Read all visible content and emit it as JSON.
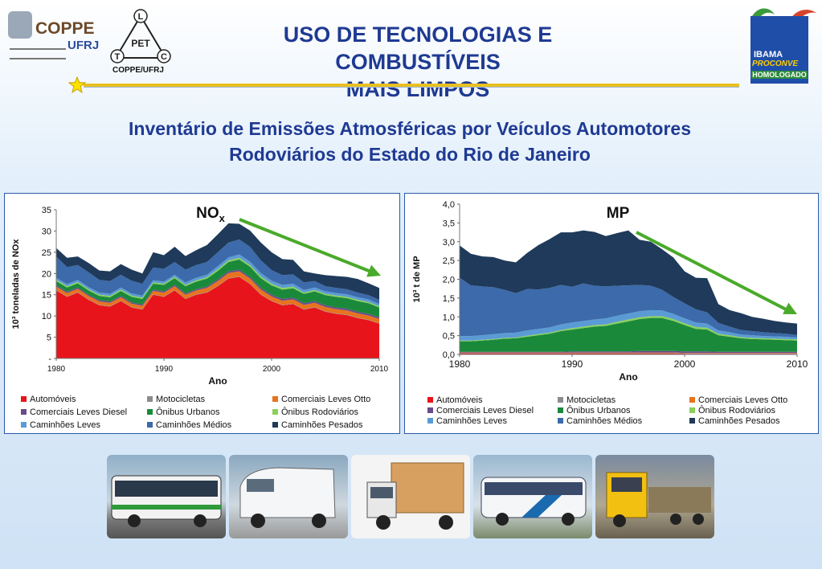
{
  "header": {
    "title_line1": "USO DE TECNOLOGIAS E COMBUSTÍVEIS",
    "title_line2": "MAIS LIMPOS",
    "coppe_name": "COPPE",
    "coppe_sub": "UFRJ",
    "pet_center": "PET",
    "pet_letters": [
      "L",
      "T",
      "C"
    ],
    "pet_caption": "COPPE/UFRJ",
    "ibama_line1": "IBAMA",
    "ibama_line2": "PROCONVE",
    "ibama_line3": "HOMOLOGADO"
  },
  "subtitle": {
    "line1": "Inventário de Emissões Atmosféricas por Veículos Automotores",
    "line2": "Rodoviários do Estado do Rio de Janeiro"
  },
  "colors": {
    "title": "#1f3a93",
    "accent_line": "#e8c020",
    "trend_arrow": "#4aaa2a",
    "panel_border": "#2b5aa8"
  },
  "legend": {
    "categories": [
      {
        "name": "Automóveis",
        "color": "#e8141b"
      },
      {
        "name": "Motocicletas",
        "color": "#8c8c8c"
      },
      {
        "name": "Comerciais Leves Otto",
        "color": "#e8731e"
      },
      {
        "name": "Comerciais Leves Diesel",
        "color": "#6a4a8a"
      },
      {
        "name": "Ônibus Urbanos",
        "color": "#1a8a3a"
      },
      {
        "name": "Ônibus Rodoviários",
        "color": "#8ad05a"
      },
      {
        "name": "Caminhões Leves",
        "color": "#5b9bd5"
      },
      {
        "name": "Caminhões Médios",
        "color": "#3c6aaa"
      },
      {
        "name": "Caminhões Pesados",
        "color": "#1f3a5a"
      }
    ]
  },
  "chart_data": [
    {
      "type": "area",
      "stacked": true,
      "label": "NOx",
      "title_main": "NO",
      "title_sub": "x",
      "xlabel": "Ano",
      "ylabel": "10³ toneladas de NOx",
      "x_ticks": [
        "1980",
        "1990",
        "2000",
        "2010"
      ],
      "y_ticks": [
        "-",
        "5",
        "10",
        "15",
        "20",
        "25",
        "30",
        "35"
      ],
      "xlim": [
        1980,
        2010
      ],
      "ylim": [
        0,
        35
      ],
      "x": [
        1980,
        1981,
        1982,
        1983,
        1984,
        1985,
        1986,
        1987,
        1988,
        1989,
        1990,
        1991,
        1992,
        1993,
        1994,
        1995,
        1996,
        1997,
        1998,
        1999,
        2000,
        2001,
        2002,
        2003,
        2004,
        2005,
        2006,
        2007,
        2008,
        2009,
        2010
      ],
      "series": [
        {
          "name": "Automóveis",
          "values": [
            16.0,
            14.5,
            15.5,
            13.8,
            12.5,
            12.2,
            13.5,
            12.0,
            11.5,
            15.0,
            14.5,
            16.0,
            14.0,
            15.0,
            15.5,
            17.0,
            18.8,
            19.2,
            17.5,
            15.0,
            13.5,
            12.5,
            12.8,
            11.5,
            12.0,
            11.0,
            10.5,
            10.2,
            9.5,
            9.0,
            8.2
          ]
        },
        {
          "name": "Motocicletas",
          "values": [
            0.1,
            0.1,
            0.1,
            0.1,
            0.1,
            0.1,
            0.1,
            0.1,
            0.1,
            0.1,
            0.1,
            0.1,
            0.1,
            0.1,
            0.1,
            0.1,
            0.1,
            0.1,
            0.1,
            0.1,
            0.1,
            0.1,
            0.1,
            0.1,
            0.1,
            0.1,
            0.1,
            0.1,
            0.1,
            0.1,
            0.1
          ]
        },
        {
          "name": "Comerciais Leves Otto",
          "values": [
            0.8,
            0.8,
            0.8,
            0.8,
            0.8,
            0.8,
            0.8,
            0.8,
            0.8,
            0.8,
            0.9,
            0.9,
            0.9,
            0.9,
            1.0,
            1.1,
            1.2,
            1.2,
            1.2,
            1.1,
            1.0,
            1.0,
            1.0,
            1.0,
            1.0,
            1.0,
            1.0,
            1.0,
            1.0,
            1.0,
            1.0
          ]
        },
        {
          "name": "Comerciais Leves Diesel",
          "values": [
            0.3,
            0.3,
            0.3,
            0.3,
            0.3,
            0.3,
            0.3,
            0.3,
            0.3,
            0.3,
            0.3,
            0.3,
            0.3,
            0.3,
            0.3,
            0.4,
            0.4,
            0.4,
            0.4,
            0.4,
            0.4,
            0.4,
            0.4,
            0.4,
            0.4,
            0.4,
            0.4,
            0.4,
            0.4,
            0.4,
            0.4
          ]
        },
        {
          "name": "Ônibus Urbanos",
          "values": [
            1.0,
            1.0,
            1.0,
            1.0,
            1.0,
            1.0,
            1.2,
            1.3,
            1.3,
            1.4,
            1.5,
            1.6,
            1.7,
            1.8,
            1.9,
            2.0,
            2.2,
            2.4,
            2.4,
            2.3,
            2.2,
            2.2,
            2.2,
            2.2,
            2.3,
            2.4,
            2.5,
            2.5,
            2.5,
            2.5,
            2.3
          ]
        },
        {
          "name": "Ônibus Rodoviários",
          "values": [
            0.3,
            0.3,
            0.3,
            0.3,
            0.3,
            0.3,
            0.3,
            0.3,
            0.3,
            0.3,
            0.3,
            0.3,
            0.3,
            0.3,
            0.3,
            0.4,
            0.4,
            0.4,
            0.4,
            0.4,
            0.4,
            0.4,
            0.4,
            0.3,
            0.3,
            0.3,
            0.3,
            0.3,
            0.3,
            0.3,
            0.3
          ]
        },
        {
          "name": "Caminhões Leves",
          "values": [
            0.5,
            0.5,
            0.5,
            0.5,
            0.5,
            0.5,
            0.5,
            0.5,
            0.5,
            0.5,
            0.5,
            0.5,
            0.6,
            0.6,
            0.6,
            0.7,
            0.7,
            0.8,
            0.8,
            0.8,
            0.7,
            0.7,
            0.7,
            0.6,
            0.6,
            0.6,
            0.6,
            0.6,
            0.6,
            0.6,
            0.5
          ]
        },
        {
          "name": "Caminhões Médios",
          "values": [
            5.0,
            4.0,
            3.5,
            3.5,
            3.0,
            3.0,
            3.0,
            3.0,
            2.8,
            3.0,
            3.0,
            3.0,
            3.0,
            3.0,
            3.0,
            3.3,
            3.5,
            3.5,
            3.5,
            3.0,
            2.5,
            2.3,
            2.2,
            1.8,
            1.5,
            1.2,
            1.2,
            1.2,
            1.1,
            1.0,
            1.0
          ]
        },
        {
          "name": "Caminhões Pesados",
          "values": [
            2.0,
            2.2,
            2.0,
            2.2,
            2.2,
            2.3,
            2.5,
            2.6,
            2.4,
            3.6,
            3.2,
            3.6,
            3.2,
            3.5,
            4.0,
            4.2,
            4.5,
            3.7,
            3.8,
            4.2,
            4.2,
            3.8,
            3.4,
            2.6,
            1.8,
            2.6,
            2.8,
            2.9,
            3.2,
            2.8,
            2.8
          ]
        }
      ]
    },
    {
      "type": "area",
      "stacked": true,
      "label": "MP",
      "title_main": "MP",
      "xlabel": "Ano",
      "ylabel": "10³ t de MP",
      "x_ticks": [
        "1980",
        "1990",
        "2000",
        "2010"
      ],
      "y_ticks": [
        "0,0",
        "0,5",
        "1,0",
        "1,5",
        "2,0",
        "2,5",
        "3,0",
        "3,5",
        "4,0"
      ],
      "xlim": [
        1980,
        2010
      ],
      "ylim": [
        0,
        4.0
      ],
      "x": [
        1980,
        1981,
        1982,
        1983,
        1984,
        1985,
        1986,
        1987,
        1988,
        1989,
        1990,
        1991,
        1992,
        1993,
        1994,
        1995,
        1996,
        1997,
        1998,
        1999,
        2000,
        2001,
        2002,
        2003,
        2004,
        2005,
        2006,
        2007,
        2008,
        2009,
        2010
      ],
      "series": [
        {
          "name": "Automóveis",
          "values": [
            0.03,
            0.03,
            0.03,
            0.03,
            0.03,
            0.03,
            0.03,
            0.03,
            0.03,
            0.03,
            0.03,
            0.03,
            0.03,
            0.03,
            0.03,
            0.03,
            0.03,
            0.03,
            0.03,
            0.03,
            0.02,
            0.02,
            0.02,
            0.02,
            0.02,
            0.02,
            0.02,
            0.02,
            0.02,
            0.02,
            0.02
          ]
        },
        {
          "name": "Motocicletas",
          "values": [
            0.01,
            0.01,
            0.01,
            0.01,
            0.01,
            0.01,
            0.01,
            0.01,
            0.01,
            0.01,
            0.01,
            0.01,
            0.01,
            0.01,
            0.01,
            0.01,
            0.01,
            0.01,
            0.01,
            0.01,
            0.01,
            0.01,
            0.01,
            0.01,
            0.01,
            0.01,
            0.01,
            0.01,
            0.01,
            0.01,
            0.01
          ]
        },
        {
          "name": "Comerciais Leves Otto",
          "values": [
            0.01,
            0.01,
            0.01,
            0.01,
            0.01,
            0.01,
            0.01,
            0.01,
            0.01,
            0.01,
            0.01,
            0.01,
            0.01,
            0.01,
            0.01,
            0.01,
            0.01,
            0.01,
            0.01,
            0.01,
            0.01,
            0.01,
            0.01,
            0.01,
            0.01,
            0.01,
            0.01,
            0.01,
            0.01,
            0.01,
            0.01
          ]
        },
        {
          "name": "Comerciais Leves Diesel",
          "values": [
            0.02,
            0.02,
            0.02,
            0.02,
            0.02,
            0.02,
            0.02,
            0.02,
            0.02,
            0.02,
            0.03,
            0.03,
            0.03,
            0.03,
            0.03,
            0.03,
            0.04,
            0.04,
            0.04,
            0.04,
            0.04,
            0.04,
            0.04,
            0.03,
            0.03,
            0.03,
            0.03,
            0.03,
            0.03,
            0.03,
            0.03
          ]
        },
        {
          "name": "Ônibus Urbanos",
          "values": [
            0.28,
            0.28,
            0.3,
            0.32,
            0.35,
            0.36,
            0.4,
            0.44,
            0.48,
            0.55,
            0.58,
            0.62,
            0.66,
            0.68,
            0.74,
            0.8,
            0.85,
            0.88,
            0.88,
            0.8,
            0.7,
            0.6,
            0.58,
            0.44,
            0.4,
            0.36,
            0.34,
            0.33,
            0.32,
            0.31,
            0.3
          ]
        },
        {
          "name": "Ônibus Rodoviários",
          "values": [
            0.02,
            0.02,
            0.02,
            0.02,
            0.02,
            0.02,
            0.03,
            0.03,
            0.03,
            0.03,
            0.04,
            0.04,
            0.04,
            0.04,
            0.05,
            0.05,
            0.05,
            0.05,
            0.05,
            0.05,
            0.05,
            0.05,
            0.05,
            0.04,
            0.04,
            0.03,
            0.03,
            0.03,
            0.03,
            0.03,
            0.03
          ]
        },
        {
          "name": "Caminhões Leves",
          "values": [
            0.12,
            0.12,
            0.12,
            0.13,
            0.13,
            0.13,
            0.14,
            0.14,
            0.14,
            0.15,
            0.15,
            0.15,
            0.15,
            0.16,
            0.16,
            0.16,
            0.16,
            0.16,
            0.15,
            0.14,
            0.13,
            0.12,
            0.11,
            0.09,
            0.08,
            0.07,
            0.07,
            0.06,
            0.06,
            0.06,
            0.05
          ]
        },
        {
          "name": "Caminhões Médios",
          "values": [
            1.55,
            1.35,
            1.3,
            1.25,
            1.15,
            1.05,
            1.1,
            1.05,
            1.05,
            1.05,
            0.95,
            1.0,
            0.9,
            0.85,
            0.8,
            0.75,
            0.7,
            0.65,
            0.55,
            0.45,
            0.4,
            0.35,
            0.3,
            0.2,
            0.15,
            0.12,
            0.11,
            0.1,
            0.09,
            0.08,
            0.07
          ]
        },
        {
          "name": "Caminhões Pesados",
          "values": [
            0.86,
            0.84,
            0.8,
            0.8,
            0.78,
            0.82,
            0.96,
            1.18,
            1.3,
            1.4,
            1.45,
            1.41,
            1.43,
            1.34,
            1.4,
            1.46,
            1.2,
            1.17,
            1.08,
            1.05,
            0.85,
            0.84,
            0.91,
            0.5,
            0.44,
            0.45,
            0.38,
            0.36,
            0.32,
            0.3,
            0.3
          ]
        }
      ]
    }
  ]
}
